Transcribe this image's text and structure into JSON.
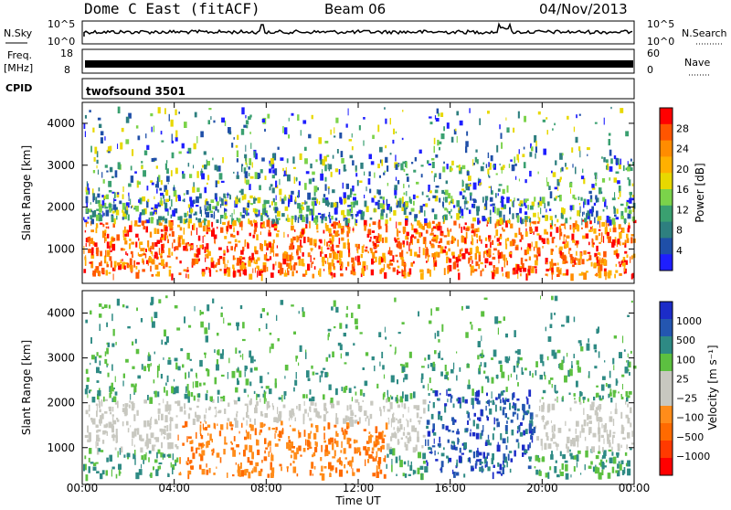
{
  "header": {
    "title": "Dome C East (fitACF)",
    "beam": "Beam 06",
    "date": "04/Nov/2013"
  },
  "strip_panels": {
    "nsky": {
      "label": "N.Sky",
      "right_label": "N.Search",
      "ticks": [
        "10^5",
        "10^0"
      ],
      "right_ticks": [
        "10^5",
        "10^0"
      ]
    },
    "freq": {
      "label_line1": "Freq.",
      "label_line2": "[MHz]",
      "ticks": [
        "18",
        "8"
      ],
      "right_ticks": [
        "60",
        "0"
      ],
      "right_label": "Nave"
    },
    "cpid": {
      "label": "CPID",
      "program": "twofsound 3501"
    }
  },
  "chart_data": [
    {
      "type": "heatmap",
      "name": "power",
      "ylabel": "Slant Range [km]",
      "yticks": [
        "4000",
        "3000",
        "2000",
        "1000"
      ],
      "ylim": [
        180,
        4500
      ],
      "colorbar": {
        "label": "Power [dB]",
        "ticks": [
          "28",
          "24",
          "20",
          "16",
          "12",
          "8",
          "4"
        ],
        "colors": [
          "#ff0000",
          "#ff5500",
          "#ff8c00",
          "#ffb000",
          "#e8d800",
          "#7bd34a",
          "#3aa070",
          "#2e7f7f",
          "#1f4fa8",
          "#1e1eff"
        ]
      }
    },
    {
      "type": "heatmap",
      "name": "velocity",
      "ylabel": "Slant Range [km]",
      "yticks": [
        "4000",
        "3000",
        "2000",
        "1000"
      ],
      "ylim": [
        180,
        4500
      ],
      "colorbar": {
        "label": "Velocity [m s⁻¹]",
        "ticks": [
          "1000",
          "500",
          "100",
          "25",
          "−25",
          "−100",
          "−500",
          "−1000"
        ],
        "colors": [
          "#1c2cc8",
          "#2456b0",
          "#2e8a84",
          "#5cc040",
          "#c8c8c0",
          "#c8c8c0",
          "#ff8c1a",
          "#ff6a00",
          "#ff3a00",
          "#ff0000"
        ]
      }
    }
  ],
  "xaxis": {
    "label": "Time UT",
    "ticks": [
      "00:00",
      "04:00",
      "08:00",
      "12:00",
      "16:00",
      "20:00",
      "00:00"
    ]
  }
}
